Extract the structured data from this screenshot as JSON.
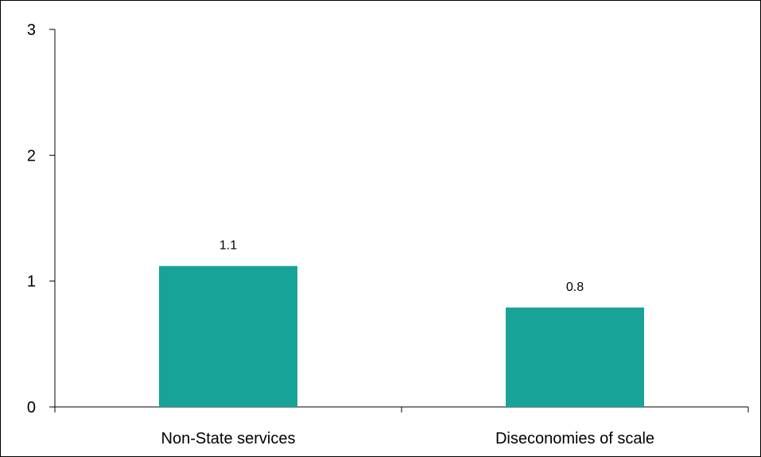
{
  "chart_data": {
    "type": "bar",
    "title": "",
    "xlabel": "",
    "ylabel": "",
    "categories": [
      "Non-State services",
      "Diseconomies of scale"
    ],
    "values": [
      1.12,
      0.79
    ],
    "data_labels": [
      "1.1",
      "0.8"
    ],
    "ylim": [
      0,
      3
    ],
    "yticks": [
      0,
      1,
      2,
      3
    ],
    "ytick_labels": [
      "0",
      "1",
      "2",
      "3"
    ],
    "grid": false,
    "legend": "none",
    "bar_color": "#17A398",
    "axis_color": "#000000"
  }
}
